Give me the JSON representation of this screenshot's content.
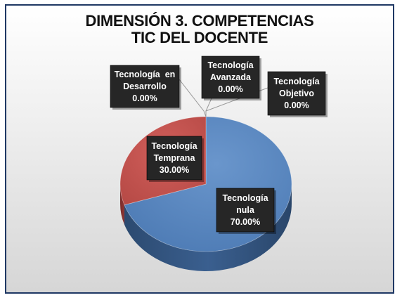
{
  "chart_data": {
    "type": "pie",
    "title_lines": [
      "DIMENSIÓN 3. COMPETENCIAS",
      "TIC DEL DOCENTE"
    ],
    "slices": [
      {
        "name_lines": [
          "Tecnología",
          "nula"
        ],
        "value": 70.0,
        "label": "70.00%",
        "color": "#4f81bd"
      },
      {
        "name_lines": [
          "Tecnología",
          "Temprana"
        ],
        "value": 30.0,
        "label": "30.00%",
        "color": "#c0504d"
      },
      {
        "name_lines": [
          "Tecnología  en",
          "Desarrollo"
        ],
        "value": 0.0,
        "label": "0.00%",
        "color": "#9bbb59"
      },
      {
        "name_lines": [
          "Tecnología",
          "Avanzada"
        ],
        "value": 0.0,
        "label": "0.00%",
        "color": "#8064a2"
      },
      {
        "name_lines": [
          "Tecnología",
          "Objetivo"
        ],
        "value": 0.0,
        "label": "0.00%",
        "color": "#4bacc6"
      }
    ],
    "data_label_fill": "#262626"
  }
}
